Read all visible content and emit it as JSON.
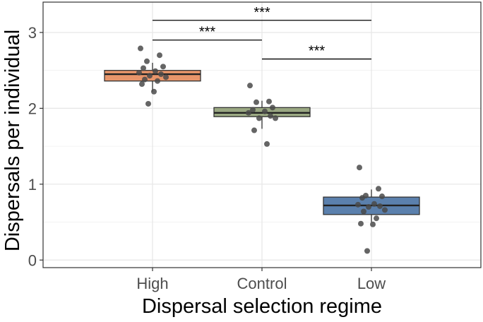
{
  "chart_data": {
    "type": "boxplot",
    "title": "",
    "xlabel": "Dispersal selection regime",
    "ylabel": "Dispersals per individual",
    "categories": [
      "High",
      "Control",
      "Low"
    ],
    "ylim": [
      -0.1,
      3.4
    ],
    "yticks": [
      0,
      1,
      2,
      3
    ],
    "grid": true,
    "boxes": [
      {
        "category": "High",
        "fill": "#e8956a",
        "whisker_low": 2.22,
        "q1": 2.36,
        "median": 2.45,
        "q3": 2.5,
        "whisker_high": 2.6,
        "points": [
          2.79,
          2.7,
          2.62,
          2.55,
          2.53,
          2.49,
          2.47,
          2.45,
          2.43,
          2.41,
          2.38,
          2.36,
          2.32,
          2.22,
          2.06
        ]
      },
      {
        "category": "Control",
        "fill": "#9aa882",
        "whisker_low": 1.73,
        "q1": 1.89,
        "median": 1.94,
        "q3": 2.01,
        "whisker_high": 2.1,
        "points": [
          2.3,
          2.09,
          2.08,
          2.01,
          1.98,
          1.96,
          1.94,
          1.9,
          1.87,
          1.87,
          1.71,
          1.53
        ]
      },
      {
        "category": "Low",
        "fill": "#5b80ad",
        "whisker_low": 0.5,
        "q1": 0.6,
        "median": 0.72,
        "q3": 0.83,
        "whisker_high": 0.93,
        "points": [
          1.22,
          0.94,
          0.85,
          0.84,
          0.82,
          0.74,
          0.73,
          0.71,
          0.7,
          0.66,
          0.64,
          0.55,
          0.48,
          0.47,
          0.12
        ]
      }
    ],
    "comparisons": [
      {
        "from": "High",
        "to": "Low",
        "y": 3.16,
        "label": "***"
      },
      {
        "from": "High",
        "to": "Control",
        "y": 2.9,
        "label": "***"
      },
      {
        "from": "Control",
        "to": "Low",
        "y": 2.65,
        "label": "***"
      }
    ]
  }
}
